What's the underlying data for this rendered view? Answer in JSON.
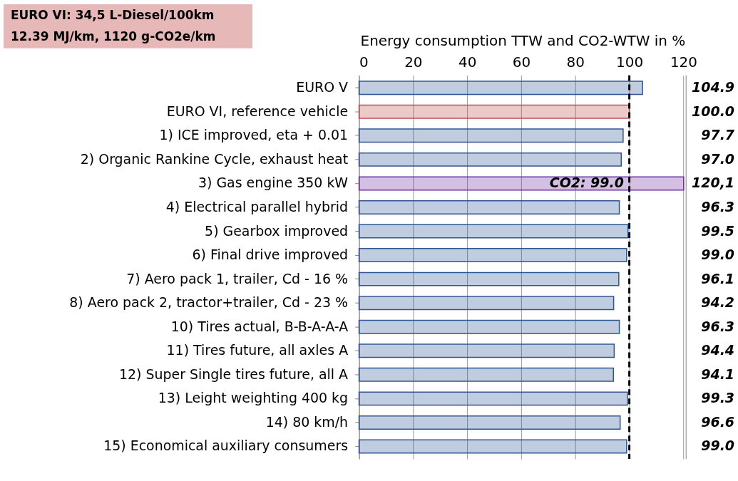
{
  "chart_data": {
    "type": "bar",
    "orientation": "horizontal",
    "title": "EURO VI: 34,5 L-Diesel/100km",
    "subtitle": "12.39 MJ/km, 1120 g-CO2e/km",
    "xlabel": "Energy consumption TTW and CO2-WTW in %",
    "categories": [
      "EURO V",
      "EURO VI, reference vehicle",
      "1) ICE improved, eta + 0.01",
      "2) Organic Rankine Cycle, exhaust heat",
      "3) Gas engine 350 kW",
      "4) Electrical parallel hybrid",
      "5) Gearbox improved",
      "6) Final drive improved",
      "7) Aero pack 1, trailer, Cd - 16 %",
      "8) Aero pack 2, tractor+trailer, Cd - 23 %",
      "10) Tires actual, B-B-A-A-A",
      "11) Tires future, all axles A",
      "12) Super Single tires future, all A",
      "13) Leight weighting 400 kg",
      "14) 80 km/h",
      "15) Economical auxiliary consumers"
    ],
    "values": [
      104.9,
      100.0,
      97.7,
      97.0,
      120.1,
      96.3,
      99.5,
      99.0,
      96.1,
      94.2,
      96.3,
      94.4,
      94.1,
      99.3,
      96.6,
      99.0
    ],
    "value_labels": [
      "104.9",
      "100.0",
      "97.7",
      "97.0",
      "120,1",
      "96.3",
      "99.5",
      "99.0",
      "96.1",
      "94.2",
      "96.3",
      "94.4",
      "94.1",
      "99.3",
      "96.6",
      "99.0"
    ],
    "colors": [
      "#2f5597",
      "#c0504d",
      "#2f5597",
      "#2f5597",
      "#7030a0",
      "#2f5597",
      "#2f5597",
      "#2f5597",
      "#2f5597",
      "#2f5597",
      "#2f5597",
      "#2f5597",
      "#2f5597",
      "#2f5597",
      "#2f5597",
      "#2f5597"
    ],
    "xlim": [
      0,
      121
    ],
    "xticks": [
      0,
      20,
      40,
      60,
      80,
      100,
      120
    ],
    "grid": "x",
    "ref_lines": [
      {
        "axis": "x",
        "value": 100,
        "color": "#000000",
        "line_style": "dashed"
      }
    ],
    "annotations": [
      {
        "text": "CO2: 99.0",
        "x": 99,
        "y": "3) Gas engine 350 kW"
      }
    ]
  }
}
